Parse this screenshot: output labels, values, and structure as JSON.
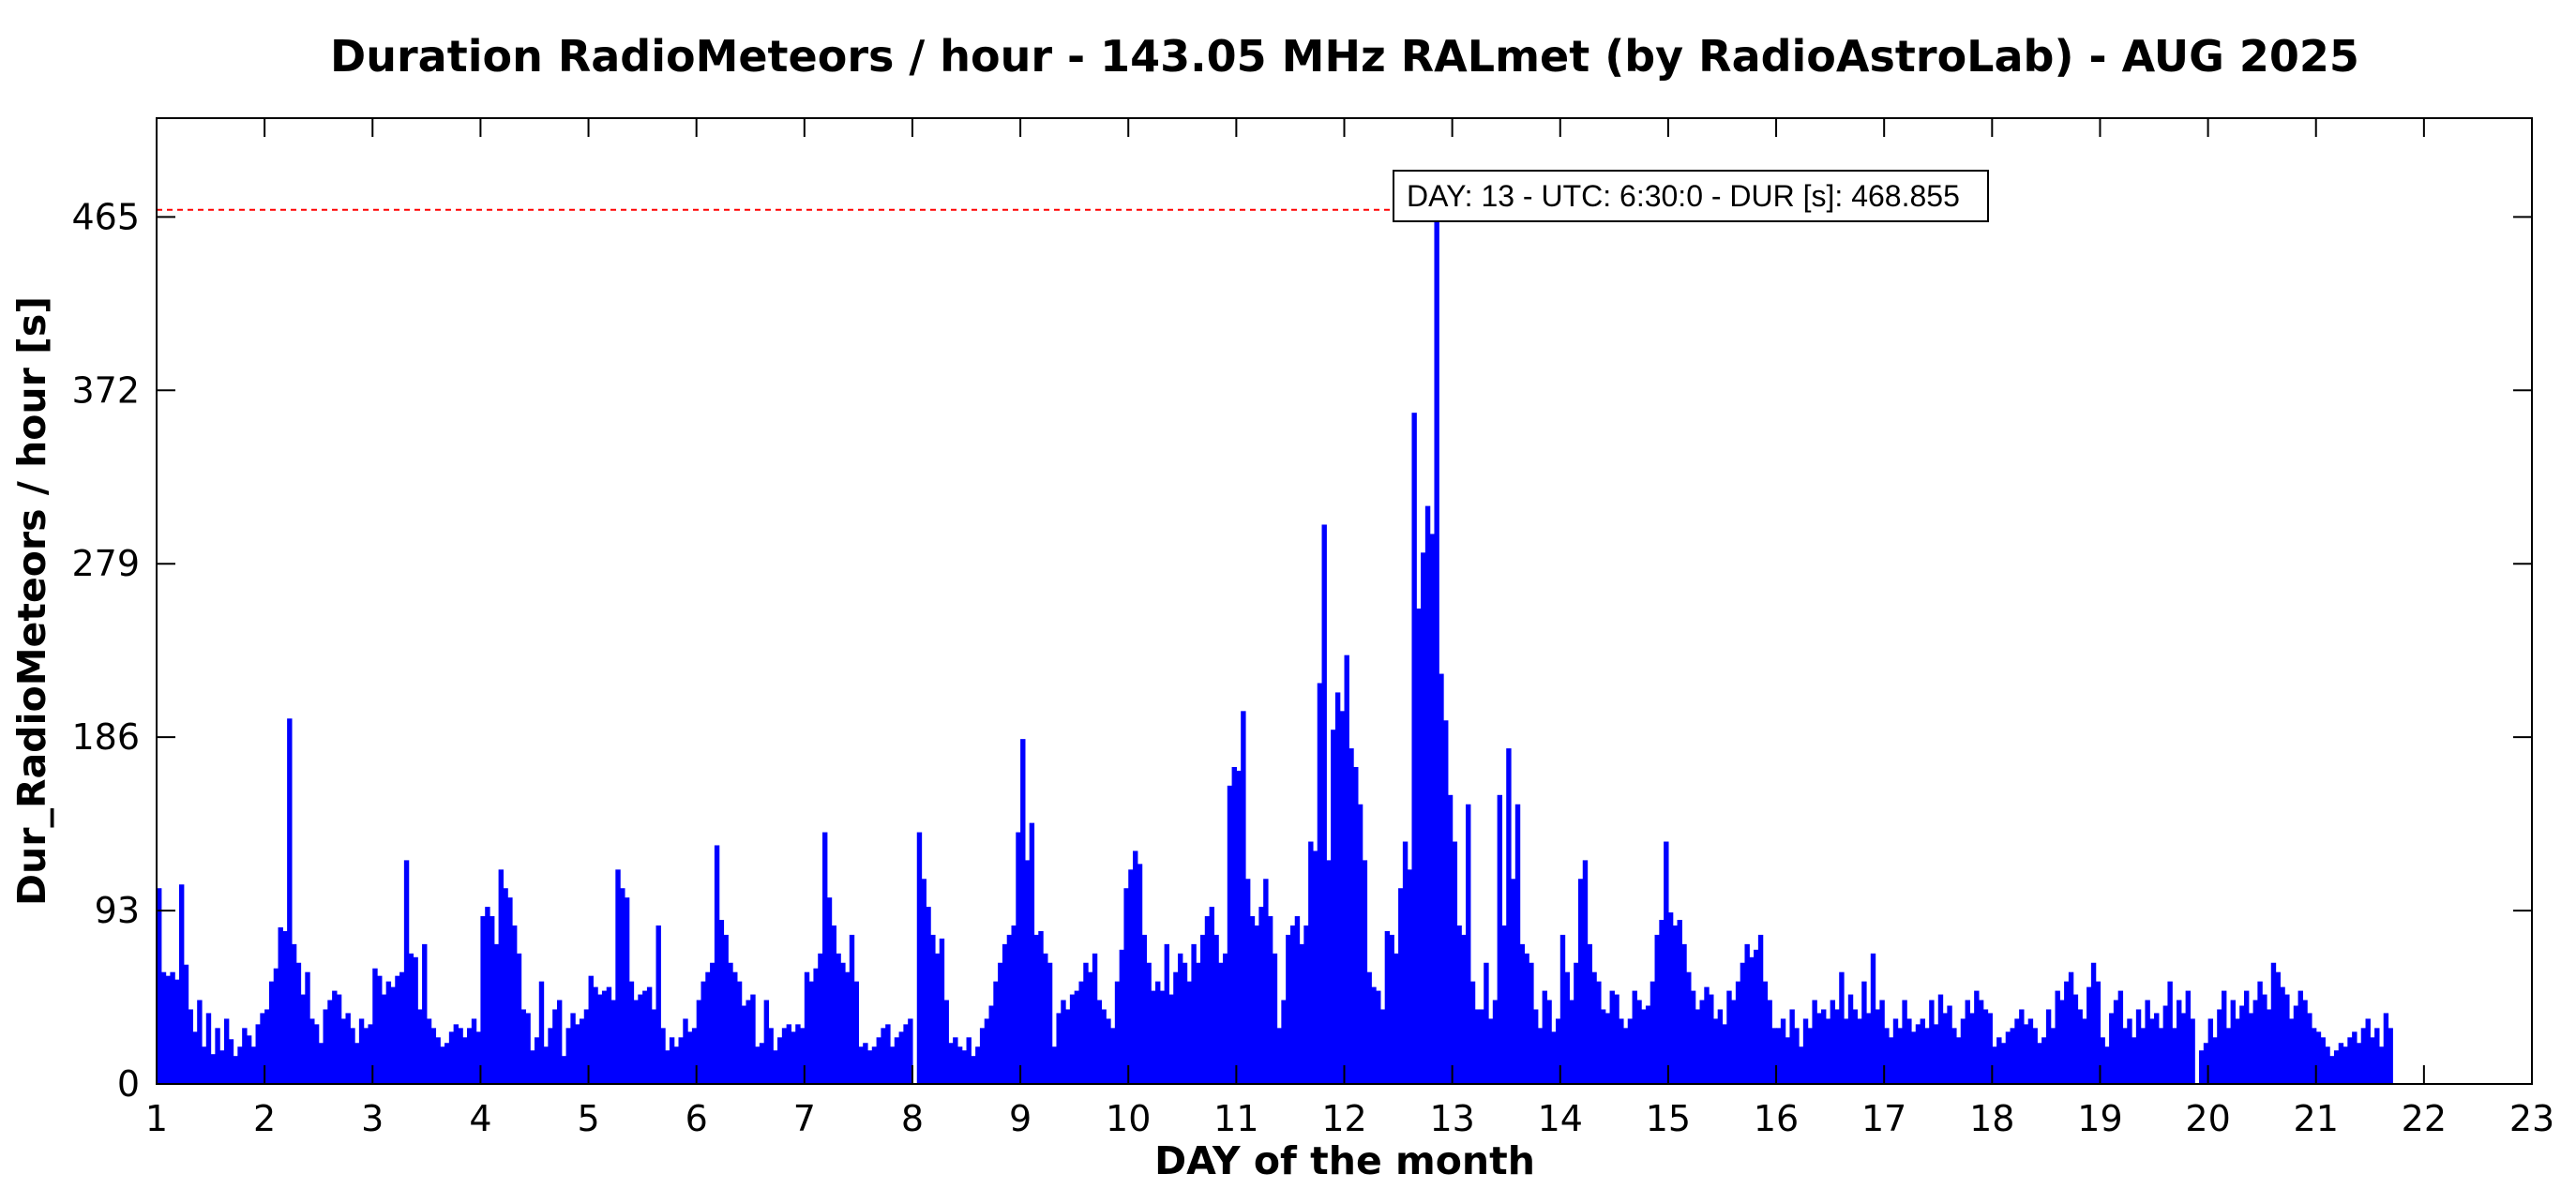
{
  "chart_data": {
    "type": "bar",
    "title": "Duration RadioMeteors / hour - 143.05 MHz RALmet (by RadioAstroLab) - AUG 2025",
    "xlabel": "DAY of the month",
    "ylabel": "Dur_RadioMeteors / hour [s]",
    "xlim": [
      1,
      23
    ],
    "ylim": [
      0,
      518
    ],
    "xticks": [
      "1",
      "2",
      "3",
      "4",
      "5",
      "6",
      "7",
      "8",
      "9",
      "10",
      "11",
      "12",
      "13",
      "14",
      "15",
      "16",
      "17",
      "18",
      "19",
      "20",
      "21",
      "22",
      "23"
    ],
    "yticks": [
      "0",
      "93",
      "186",
      "279",
      "372",
      "465"
    ],
    "grid": false,
    "bar_color": "#0000ff",
    "x_unit": "day",
    "x_step": 0.041667,
    "peak": {
      "x": 13.271,
      "y": 468.855,
      "label": "DAY: 13 - UTC: 6:30:0 - DUR [s]: 468.855",
      "line_color": "#ff0000"
    },
    "hourly_duration_s": [
      105,
      60,
      58,
      60,
      56,
      107,
      64,
      40,
      28,
      45,
      20,
      38,
      16,
      30,
      18,
      35,
      24,
      15,
      20,
      30,
      26,
      20,
      32,
      38,
      40,
      55,
      62,
      84,
      82,
      196,
      75,
      65,
      48,
      60,
      35,
      32,
      22,
      40,
      45,
      50,
      48,
      35,
      38,
      30,
      22,
      35,
      30,
      32,
      62,
      58,
      48,
      55,
      52,
      58,
      60,
      120,
      70,
      68,
      40,
      75,
      35,
      30,
      25,
      20,
      22,
      28,
      32,
      30,
      25,
      30,
      35,
      28,
      90,
      95,
      90,
      75,
      115,
      105,
      100,
      85,
      70,
      40,
      38,
      18,
      25,
      55,
      20,
      30,
      40,
      45,
      15,
      30,
      38,
      32,
      35,
      40,
      58,
      52,
      48,
      50,
      52,
      45,
      115,
      105,
      100,
      55,
      45,
      48,
      50,
      52,
      40,
      85,
      30,
      18,
      25,
      20,
      25,
      35,
      28,
      30,
      45,
      55,
      60,
      65,
      128,
      88,
      80,
      65,
      60,
      55,
      42,
      45,
      48,
      20,
      22,
      45,
      30,
      18,
      25,
      30,
      32,
      28,
      32,
      30,
      60,
      55,
      62,
      70,
      135,
      100,
      85,
      70,
      65,
      60,
      80,
      55,
      20,
      22,
      18,
      20,
      25,
      30,
      32,
      20,
      25,
      28,
      32,
      35,
      0,
      135,
      110,
      95,
      80,
      70,
      78,
      45,
      22,
      25,
      20,
      18,
      25,
      15,
      20,
      30,
      35,
      42,
      55,
      65,
      75,
      80,
      85,
      135,
      185,
      120,
      140,
      80,
      82,
      70,
      65,
      20,
      38,
      45,
      40,
      48,
      50,
      55,
      65,
      60,
      70,
      45,
      40,
      35,
      30,
      55,
      72,
      105,
      115,
      125,
      118,
      80,
      65,
      50,
      55,
      50,
      75,
      48,
      60,
      70,
      65,
      55,
      75,
      65,
      80,
      90,
      95,
      80,
      65,
      70,
      160,
      170,
      168,
      200,
      110,
      90,
      85,
      95,
      110,
      90,
      70,
      30,
      45,
      80,
      85,
      90,
      75,
      85,
      130,
      125,
      215,
      300,
      120,
      190,
      210,
      200,
      230,
      180,
      170,
      150,
      120,
      60,
      52,
      50,
      40,
      82,
      80,
      70,
      105,
      130,
      115,
      360,
      255,
      285,
      310,
      295,
      468,
      220,
      195,
      155,
      130,
      85,
      80,
      150,
      55,
      40,
      40,
      65,
      35,
      45,
      155,
      85,
      180,
      110,
      150,
      75,
      70,
      65,
      40,
      30,
      50,
      45,
      28,
      35,
      80,
      60,
      45,
      65,
      110,
      120,
      75,
      60,
      55,
      40,
      38,
      50,
      48,
      35,
      30,
      35,
      50,
      45,
      40,
      42,
      55,
      80,
      88,
      130,
      92,
      85,
      88,
      75,
      60,
      50,
      40,
      45,
      52,
      48,
      35,
      40,
      32,
      50,
      45,
      55,
      65,
      75,
      68,
      72,
      80,
      55,
      45,
      30,
      30,
      35,
      25,
      40,
      30,
      20,
      35,
      30,
      45,
      38,
      40,
      35,
      45,
      40,
      60,
      35,
      48,
      40,
      35,
      55,
      38,
      70,
      40,
      45,
      30,
      25,
      35,
      30,
      45,
      35,
      28,
      32,
      35,
      30,
      45,
      32,
      48,
      38,
      42,
      30,
      25,
      35,
      45,
      38,
      50,
      45,
      40,
      38,
      20,
      25,
      22,
      28,
      30,
      35,
      40,
      32,
      35,
      30,
      22,
      25,
      40,
      30,
      50,
      45,
      55,
      60,
      48,
      40,
      35,
      52,
      65,
      55,
      25,
      20,
      38,
      45,
      50,
      30,
      35,
      25,
      40,
      30,
      45,
      35,
      38,
      30,
      42,
      55,
      30,
      45,
      38,
      50,
      35,
      0,
      18,
      22,
      35,
      25,
      40,
      50,
      30,
      45,
      35,
      42,
      50,
      38,
      45,
      55,
      48,
      40,
      65,
      60,
      52,
      48,
      35,
      42,
      50,
      45,
      38,
      30,
      28,
      25,
      20,
      15,
      18,
      22,
      20,
      25,
      28,
      22,
      30,
      35,
      25,
      30,
      20,
      38,
      30
    ]
  }
}
